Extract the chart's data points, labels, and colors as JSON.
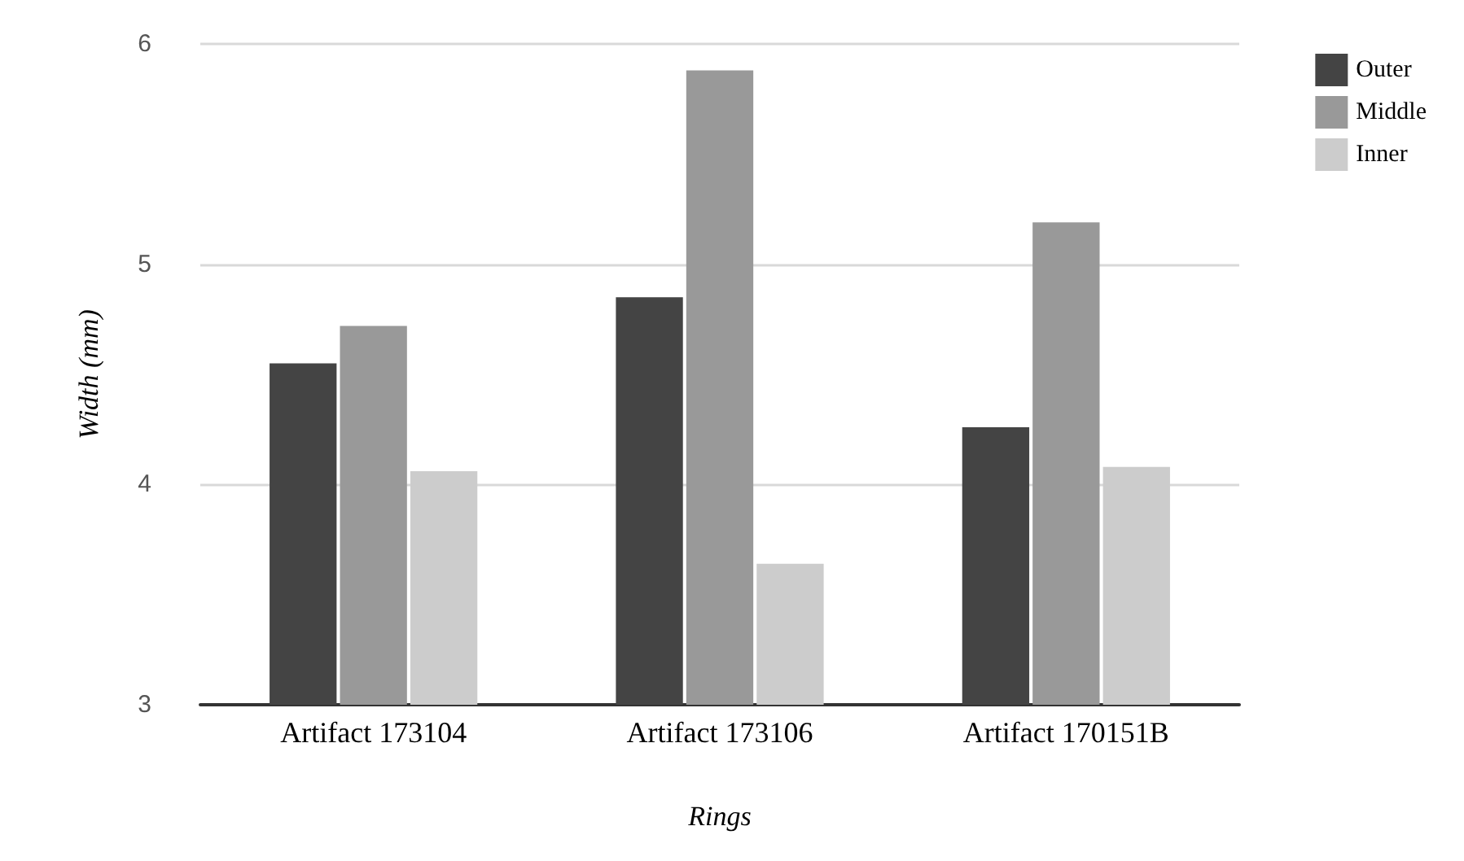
{
  "chart_data": {
    "type": "bar",
    "xlabel": "Rings",
    "ylabel": "Width (mm)",
    "categories": [
      "Artifact 173104",
      "Artifact 173106",
      "Artifact 170151B"
    ],
    "series": [
      {
        "name": "Outer",
        "color": "#444444",
        "values": [
          4.55,
          4.85,
          4.26
        ]
      },
      {
        "name": "Middle",
        "color": "#999999",
        "values": [
          4.72,
          5.88,
          5.19
        ]
      },
      {
        "name": "Inner",
        "color": "#cccccc",
        "values": [
          4.06,
          3.64,
          4.08
        ]
      }
    ],
    "ylim": [
      3,
      6
    ],
    "yticks": [
      3,
      4,
      5,
      6
    ],
    "grid": "y",
    "legend": "top right"
  }
}
